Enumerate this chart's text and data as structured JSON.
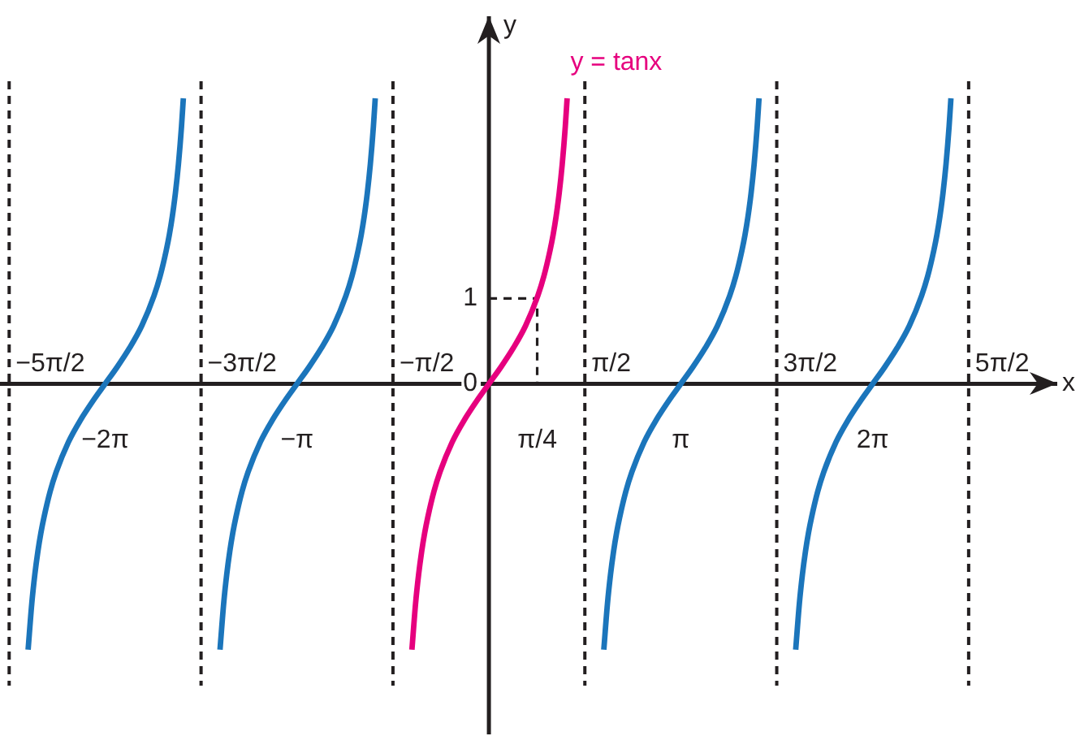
{
  "chart_data": {
    "type": "line",
    "xlabel": "x",
    "ylabel": "y",
    "xlim": [
      -8,
      9.3
    ],
    "ylim": [
      -4.1,
      4.3
    ],
    "xticks": [
      {
        "value": -6.28,
        "label": "−2π"
      },
      {
        "value": -3.14,
        "label": "−π"
      },
      {
        "value": 0.79,
        "label": "π/4"
      },
      {
        "value": 3.14,
        "label": "π"
      },
      {
        "value": 6.28,
        "label": "2π"
      }
    ],
    "yticks": [
      0,
      1
    ],
    "marker": "none",
    "series": [
      {
        "color": "#1b75bb",
        "x": [
          -7.54,
          -7.48,
          -7.43,
          -7.38,
          -7.33,
          -7.28,
          -7.18,
          -7.08,
          -6.88,
          -6.68,
          -6.48,
          -6.28,
          -6.08,
          -5.88,
          -5.68,
          -5.48,
          -5.38,
          -5.28,
          -5.23,
          -5.18,
          -5.13,
          -5.08,
          -5.03,
          -5
        ],
        "values": [
          -3.11,
          -2.57,
          -2.23,
          -1.96,
          -1.74,
          -1.56,
          -1.26,
          -1.03,
          -0.68,
          -0.42,
          -0.2,
          0,
          0.2,
          0.42,
          0.68,
          1.03,
          1.26,
          1.56,
          1.74,
          1.96,
          2.23,
          2.57,
          3.01,
          3.34
        ]
      },
      {
        "color": "#1b75bb",
        "x": [
          -4.4,
          -4.34,
          -4.29,
          -4.24,
          -4.19,
          -4.14,
          -4.04,
          -3.94,
          -3.74,
          -3.54,
          -3.34,
          -3.14,
          -2.94,
          -2.74,
          -2.54,
          -2.34,
          -2.24,
          -2.14,
          -2.09,
          -2.04,
          -1.99,
          -1.94,
          -1.89,
          -1.86
        ],
        "values": [
          -3.11,
          -2.57,
          -2.23,
          -1.96,
          -1.74,
          -1.56,
          -1.26,
          -1.03,
          -0.68,
          -0.42,
          -0.2,
          0,
          0.2,
          0.42,
          0.68,
          1.03,
          1.26,
          1.56,
          1.74,
          1.96,
          2.23,
          2.57,
          3.01,
          3.34
        ]
      },
      {
        "name": "y = tanx",
        "color": "#e6007e",
        "x": [
          -1.26,
          -1.2,
          -1.15,
          -1.1,
          -1.05,
          -1,
          -0.9,
          -0.8,
          -0.6,
          -0.4,
          -0.2,
          0,
          0.2,
          0.4,
          0.6,
          0.8,
          0.9,
          1,
          1.05,
          1.1,
          1.15,
          1.2,
          1.25,
          1.28
        ],
        "values": [
          -3.11,
          -2.57,
          -2.23,
          -1.96,
          -1.74,
          -1.56,
          -1.26,
          -1.03,
          -0.68,
          -0.42,
          -0.2,
          0,
          0.2,
          0.42,
          0.68,
          1.03,
          1.26,
          1.56,
          1.74,
          1.96,
          2.23,
          2.57,
          3.01,
          3.34
        ]
      },
      {
        "color": "#1b75bb",
        "x": [
          1.88,
          1.94,
          1.99,
          2.04,
          2.09,
          2.14,
          2.24,
          2.34,
          2.54,
          2.74,
          2.94,
          3.14,
          3.34,
          3.54,
          3.74,
          3.94,
          4.04,
          4.14,
          4.19,
          4.24,
          4.29,
          4.34,
          4.39,
          4.42
        ],
        "values": [
          -3.11,
          -2.57,
          -2.23,
          -1.96,
          -1.74,
          -1.56,
          -1.26,
          -1.03,
          -0.68,
          -0.42,
          -0.2,
          0,
          0.2,
          0.42,
          0.68,
          1.03,
          1.26,
          1.56,
          1.74,
          1.96,
          2.23,
          2.57,
          3.01,
          3.34
        ]
      },
      {
        "color": "#1b75bb",
        "x": [
          5.02,
          5.08,
          5.13,
          5.18,
          5.23,
          5.28,
          5.38,
          5.48,
          5.68,
          5.88,
          6.08,
          6.28,
          6.48,
          6.68,
          6.88,
          7.08,
          7.18,
          7.28,
          7.33,
          7.38,
          7.43,
          7.48,
          7.53,
          7.56
        ],
        "values": [
          -3.11,
          -2.57,
          -2.23,
          -1.96,
          -1.74,
          -1.56,
          -1.26,
          -1.03,
          -0.68,
          -0.42,
          -0.2,
          0,
          0.2,
          0.42,
          0.68,
          1.03,
          1.26,
          1.56,
          1.74,
          1.96,
          2.23,
          2.57,
          3.01,
          3.34
        ]
      },
      {
        "color": "#231f20",
        "line_style": "dashed",
        "x": [
          0,
          0.79,
          0.79
        ],
        "values": [
          1,
          1,
          0
        ]
      }
    ],
    "ref_lines": [
      {
        "axis": "x",
        "value": -7.85,
        "label": "−5π/2",
        "color": "#231f20",
        "line_style": "dashed"
      },
      {
        "axis": "x",
        "value": -4.71,
        "label": "−3π/2",
        "color": "#231f20",
        "line_style": "dashed"
      },
      {
        "axis": "x",
        "value": -1.57,
        "label": "−π/2",
        "color": "#231f20",
        "line_style": "dashed"
      },
      {
        "axis": "x",
        "value": 1.57,
        "label": "π/2",
        "color": "#231f20",
        "line_style": "dashed"
      },
      {
        "axis": "x",
        "value": 4.71,
        "label": "3π/2",
        "color": "#231f20",
        "line_style": "dashed"
      },
      {
        "axis": "x",
        "value": 7.85,
        "label": "5π/2",
        "color": "#231f20",
        "line_style": "dashed"
      }
    ]
  }
}
